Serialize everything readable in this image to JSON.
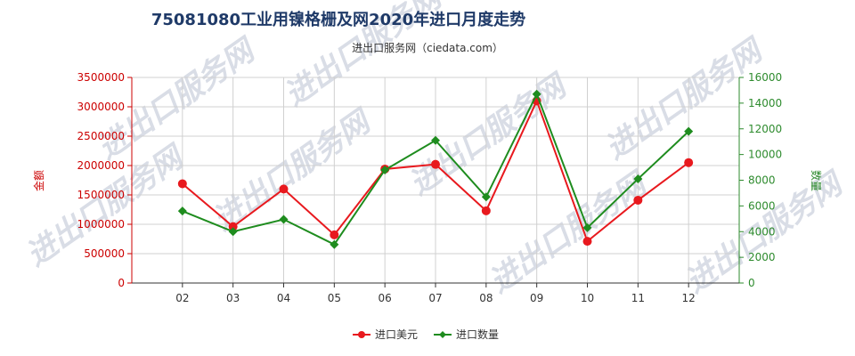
{
  "chart_data": {
    "type": "line",
    "title": "75081080工业用镍格栅及网2020年进口月度走势",
    "subtitle": "进出口服务网（ciedata.com）",
    "categories": [
      "02",
      "03",
      "04",
      "05",
      "06",
      "07",
      "08",
      "09",
      "10",
      "11",
      "12"
    ],
    "y_left": {
      "label": "金额",
      "range": [
        0,
        3500000
      ],
      "ticks": [
        0,
        500000,
        1000000,
        1500000,
        2000000,
        2500000,
        3000000,
        3500000
      ],
      "color": "#cc0000"
    },
    "y_right": {
      "label": "数量",
      "range": [
        0,
        16000
      ],
      "ticks": [
        0,
        2000,
        4000,
        6000,
        8000,
        10000,
        12000,
        14000,
        16000
      ],
      "color": "#2e8b2e"
    },
    "series": [
      {
        "name": "进口美元",
        "axis": "left",
        "color": "#e8191e",
        "values": [
          1690000,
          960000,
          1600000,
          820000,
          1940000,
          2020000,
          1230000,
          3100000,
          710000,
          1410000,
          2050000
        ]
      },
      {
        "name": "进口数量",
        "axis": "right",
        "color": "#1e8c1e",
        "values": [
          5600,
          4000,
          4950,
          3000,
          8800,
          11100,
          6700,
          14700,
          4300,
          8100,
          11800
        ]
      }
    ],
    "grid": true,
    "legend_position": "bottom-center",
    "watermark": "进出口服务网"
  }
}
